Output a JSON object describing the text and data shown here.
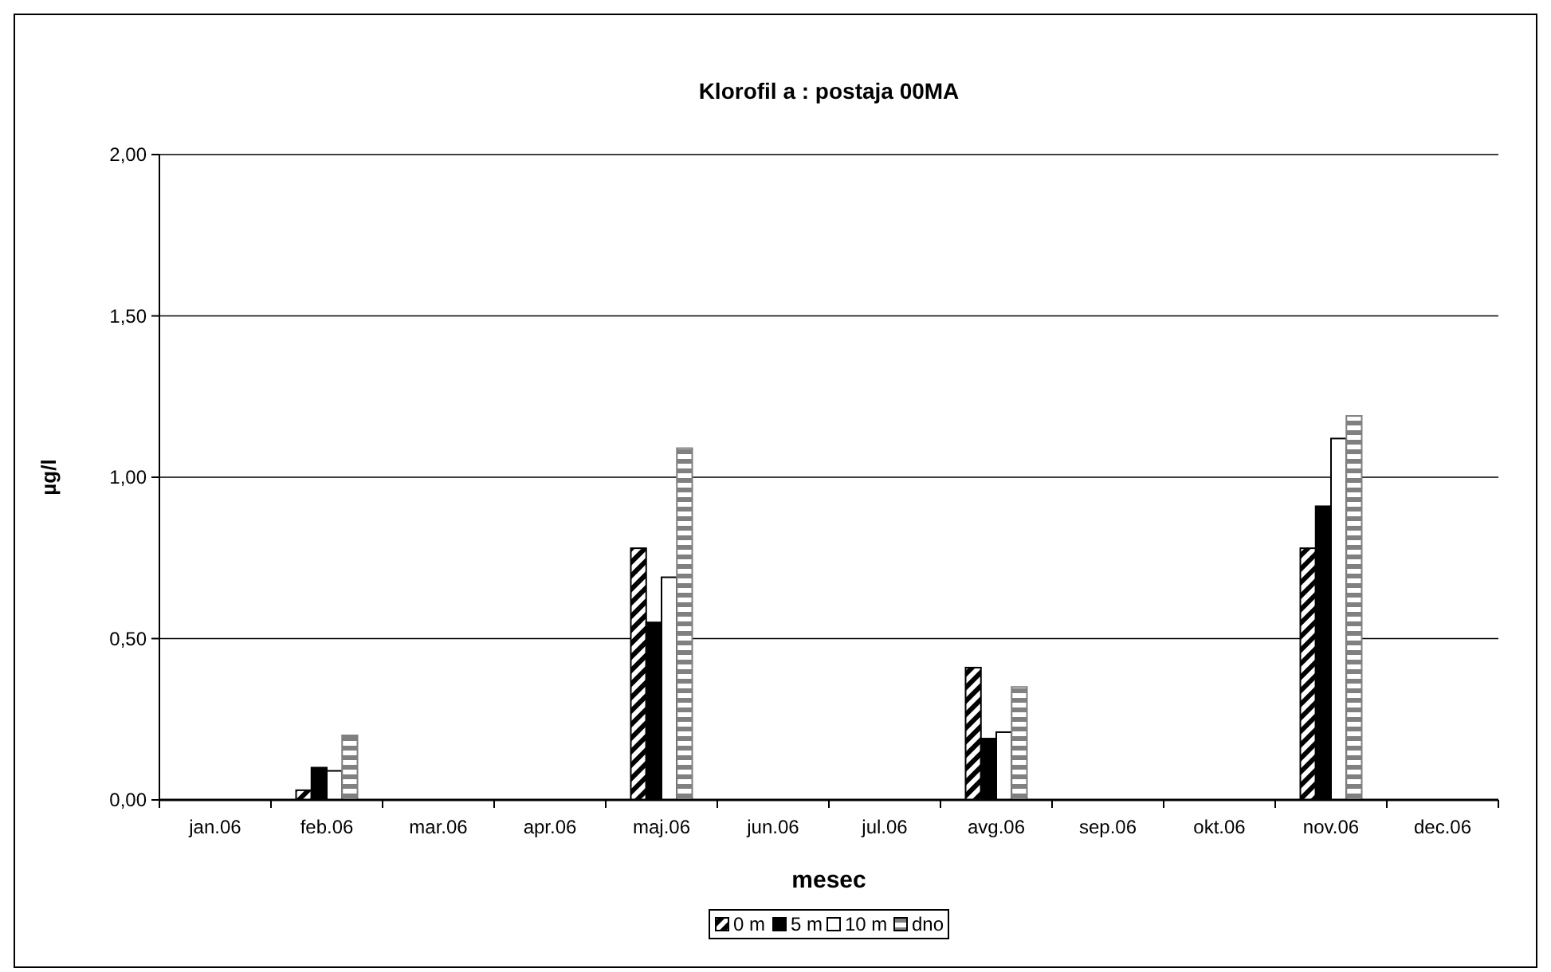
{
  "chart_data": {
    "type": "bar",
    "title": "Klorofil a : postaja 00MA",
    "xlabel": "mesec",
    "ylabel": "µg/l",
    "categories": [
      "jan.06",
      "feb.06",
      "mar.06",
      "apr.06",
      "maj.06",
      "jun.06",
      "jul.06",
      "avg.06",
      "sep.06",
      "okt.06",
      "nov.06",
      "dec.06"
    ],
    "series": [
      {
        "name": "0 m",
        "color": "#000000",
        "values": [
          null,
          0.03,
          null,
          null,
          0.78,
          null,
          null,
          0.41,
          null,
          null,
          0.78,
          null
        ]
      },
      {
        "name": "5 m",
        "color": "#000000",
        "values": [
          null,
          0.1,
          null,
          null,
          0.55,
          null,
          null,
          0.19,
          null,
          null,
          0.91,
          null
        ]
      },
      {
        "name": "10 m",
        "color": "#ffffff",
        "values": [
          null,
          0.09,
          null,
          null,
          0.69,
          null,
          null,
          0.21,
          null,
          null,
          1.12,
          null
        ]
      },
      {
        "name": "dno",
        "color": "#808080",
        "values": [
          null,
          0.2,
          null,
          null,
          1.09,
          null,
          null,
          0.35,
          null,
          null,
          1.19,
          null
        ]
      }
    ],
    "ylim": [
      0,
      2
    ],
    "yticks": [
      {
        "value": 0,
        "label": "0,00"
      },
      {
        "value": 0.5,
        "label": "0,50"
      },
      {
        "value": 1,
        "label": "1,00"
      },
      {
        "value": 1.5,
        "label": "1,50"
      },
      {
        "value": 2,
        "label": "2,00"
      }
    ],
    "grid": "y",
    "legend": "bottom"
  }
}
